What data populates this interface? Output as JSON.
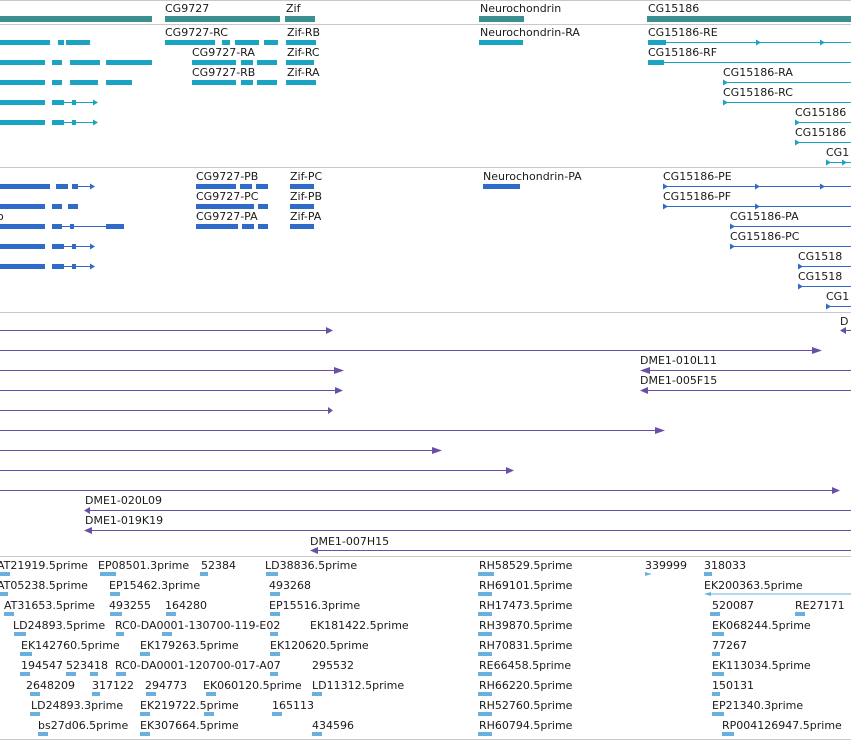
{
  "colors": {
    "gene": "#3a8f8f",
    "mrna": "#1aa3c2",
    "protein": "#2f6cc9",
    "clone": "#6a4fa6",
    "est": "#6ab0de",
    "divider": "#c8c8c8"
  },
  "tracks": {
    "genes": {
      "features": [
        {
          "label": "CG9727"
        },
        {
          "label": "Zif"
        },
        {
          "label": "Neurochondrin"
        },
        {
          "label": "CG15186"
        }
      ]
    },
    "transcripts": {
      "features": [
        {
          "label": "CG9727-RC"
        },
        {
          "label": "CG9727-RA"
        },
        {
          "label": "CG9727-RB"
        },
        {
          "label": "Zif-RB"
        },
        {
          "label": "Zif-RC"
        },
        {
          "label": "Zif-RA"
        },
        {
          "label": "Neurochondrin-RA"
        },
        {
          "label": "CG15186-RE"
        },
        {
          "label": "CG15186-RF"
        },
        {
          "label": "CG15186-RA"
        },
        {
          "label": "CG15186-RC"
        },
        {
          "label": "CG15186"
        },
        {
          "label": "CG15186"
        },
        {
          "label": "CG1"
        }
      ]
    },
    "proteins": {
      "features": [
        {
          "label": "CG9727-PB"
        },
        {
          "label": "CG9727-PC"
        },
        {
          "label": "CG9727-PA"
        },
        {
          "label": "Zif-PC"
        },
        {
          "label": "Zif-PB"
        },
        {
          "label": "Zif-PA"
        },
        {
          "label": "Neurochondrin-PA"
        },
        {
          "label": "CG15186-PE"
        },
        {
          "label": "CG15186-PF"
        },
        {
          "label": "CG15186-PA"
        },
        {
          "label": "CG15186-PC"
        },
        {
          "label": "CG1518"
        },
        {
          "label": "CG1518"
        },
        {
          "label": "CG1"
        },
        {
          "label": "o"
        }
      ]
    },
    "clones": {
      "features": [
        {
          "label": "D"
        },
        {
          "label": "DME1-010L11"
        },
        {
          "label": "DME1-005F15"
        },
        {
          "label": "DME1-020L09"
        },
        {
          "label": "DME1-019K19"
        },
        {
          "label": "DME1-007H15"
        }
      ]
    },
    "ests": {
      "features": [
        {
          "label": "AT21919.5prime"
        },
        {
          "label": "EP08501.3prime"
        },
        {
          "label": "52384"
        },
        {
          "label": "LD38836.5prime"
        },
        {
          "label": "RH58529.5prime"
        },
        {
          "label": "339999"
        },
        {
          "label": "318033"
        },
        {
          "label": "AT05238.5prime"
        },
        {
          "label": "EP15462.3prime"
        },
        {
          "label": "493268"
        },
        {
          "label": "RH69101.5prime"
        },
        {
          "label": "EK200363.5prime"
        },
        {
          "label": "AT31653.5prime"
        },
        {
          "label": "493255"
        },
        {
          "label": "164280"
        },
        {
          "label": "EP15516.3prime"
        },
        {
          "label": "RH17473.5prime"
        },
        {
          "label": "520087"
        },
        {
          "label": "RE27171"
        },
        {
          "label": "LD24893.5prime"
        },
        {
          "label": "RC0-DA0001-130700-119-E02"
        },
        {
          "label": "EK181422.5prime"
        },
        {
          "label": "RH39870.5prime"
        },
        {
          "label": "EK068244.5prime"
        },
        {
          "label": "EK142760.5prime"
        },
        {
          "label": "EK179263.5prime"
        },
        {
          "label": "EK120620.5prime"
        },
        {
          "label": "RH70831.5prime"
        },
        {
          "label": "77267"
        },
        {
          "label": "194547"
        },
        {
          "label": "523418"
        },
        {
          "label": "RC0-DA0001-120700-017-A07"
        },
        {
          "label": "295532"
        },
        {
          "label": "RE66458.5prime"
        },
        {
          "label": "EK113034.5prime"
        },
        {
          "label": "2648209"
        },
        {
          "label": "317122"
        },
        {
          "label": "294773"
        },
        {
          "label": "EK060120.5prime"
        },
        {
          "label": "LD11312.5prime"
        },
        {
          "label": "RH66220.5prime"
        },
        {
          "label": "150131"
        },
        {
          "label": "LD24893.3prime"
        },
        {
          "label": "EK219722.5prime"
        },
        {
          "label": "165113"
        },
        {
          "label": "RH52760.5prime"
        },
        {
          "label": "EP21340.3prime"
        },
        {
          "label": "bs27d06.5prime"
        },
        {
          "label": "EK307664.5prime"
        },
        {
          "label": "434596"
        },
        {
          "label": "RH60794.5prime"
        },
        {
          "label": "RP004126947.5prime"
        }
      ]
    }
  }
}
